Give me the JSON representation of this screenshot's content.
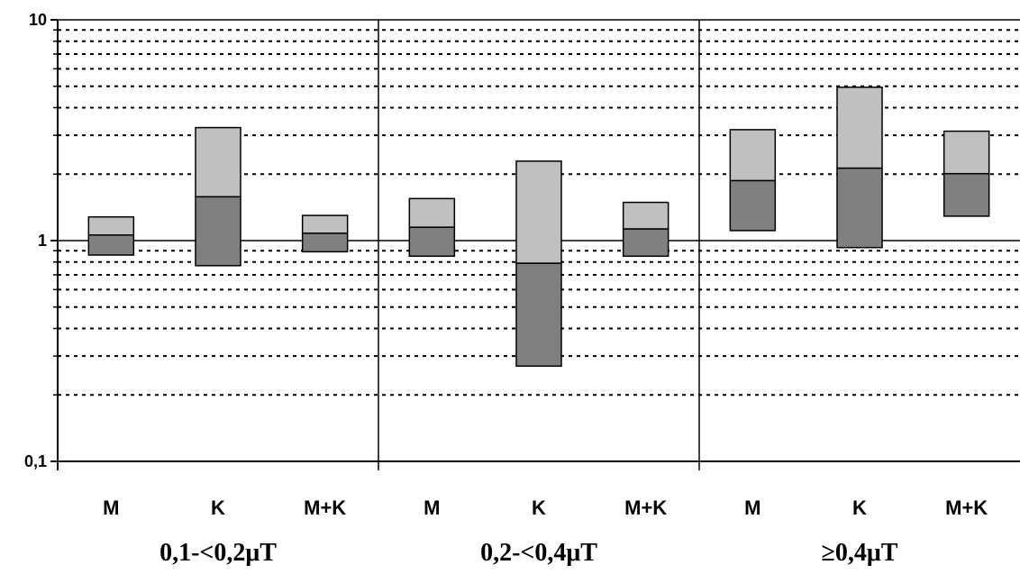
{
  "chart_data": {
    "type": "range-bar",
    "y_scale": "log",
    "ylim": [
      0.1,
      10
    ],
    "y_tick_labels": [
      {
        "value": 10,
        "label": "10"
      },
      {
        "value": 1,
        "label": "1"
      },
      {
        "value": 0.1,
        "label": "0,1"
      }
    ],
    "minor_gridlines": true,
    "gridline_style": "dotted",
    "legend": "none",
    "colors": {
      "lower": "#808080",
      "upper": "#c0c0c0",
      "border": "#000000",
      "grid": "#000000"
    },
    "groups": [
      {
        "label": "0,1-<0,2μT",
        "bars": [
          {
            "label": "M",
            "low": 0.86,
            "mid": 1.06,
            "high": 1.28
          },
          {
            "label": "K",
            "low": 0.77,
            "mid": 1.58,
            "high": 3.25
          },
          {
            "label": "M+K",
            "low": 0.89,
            "mid": 1.08,
            "high": 1.3
          }
        ]
      },
      {
        "label": "0,2-<0,4μT",
        "bars": [
          {
            "label": "M",
            "low": 0.85,
            "mid": 1.15,
            "high": 1.55
          },
          {
            "label": "K",
            "low": 0.27,
            "mid": 0.79,
            "high": 2.29
          },
          {
            "label": "M+K",
            "low": 0.85,
            "mid": 1.13,
            "high": 1.49
          }
        ]
      },
      {
        "label": "≥0,4μT",
        "bars": [
          {
            "label": "M",
            "low": 1.11,
            "mid": 1.87,
            "high": 3.18
          },
          {
            "label": "K",
            "low": 0.93,
            "mid": 2.13,
            "high": 4.95
          },
          {
            "label": "M+K",
            "low": 1.29,
            "mid": 2.01,
            "high": 3.13
          }
        ]
      }
    ]
  }
}
